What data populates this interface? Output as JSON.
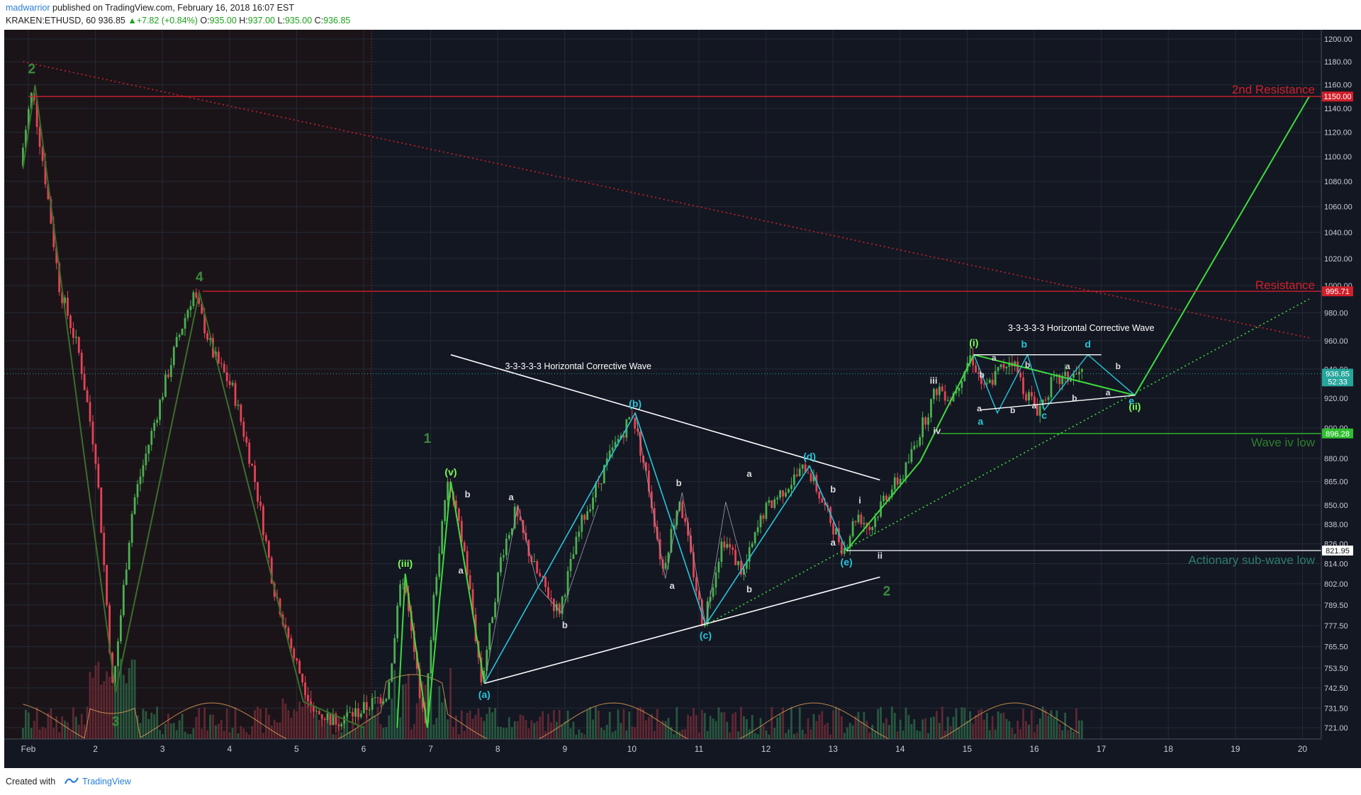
{
  "header": {
    "author": "madwarrior",
    "published": "published on TradingView.com, February 16, 2018 16:07 EST",
    "symbol": "KRAKEN:ETHUSD, 60",
    "last": "936.85",
    "change": "+7.82 (+0.84%)",
    "open_label": "O:",
    "open": "935.00",
    "high_label": "H:",
    "high": "937.00",
    "low_label": "L:",
    "low": "935.00",
    "close_label": "C:",
    "close": "936.85"
  },
  "footer": {
    "created_with": "Created with",
    "brand": "TradingView"
  },
  "colors": {
    "background": "#131722",
    "grid": "#2a2e39",
    "candle_up": "#4caf50",
    "candle_down": "#e54354",
    "wave_cyan": "#26c6da",
    "wave_green": "#3ddc3d",
    "resistance_red": "#d0202a",
    "label_green": "#3a8a3a"
  },
  "chart_data": {
    "type": "candlestick",
    "y_axis": {
      "ticks": [
        "721.00",
        "731.50",
        "742.50",
        "753.50",
        "765.50",
        "777.50",
        "789.50",
        "802.00",
        "814.00",
        "826.00",
        "838.00",
        "850.00",
        "865.00",
        "880.00",
        "900.00",
        "920.00",
        "940.00",
        "960.00",
        "980.00",
        "1000.00",
        "1020.00",
        "1040.00",
        "1060.00",
        "1080.00",
        "1100.00",
        "1120.00",
        "1140.00",
        "1160.00",
        "1180.00",
        "1200.00"
      ],
      "tick_values": [
        721,
        731.5,
        742.5,
        753.5,
        765.5,
        777.5,
        789.5,
        802,
        814,
        826,
        838,
        850,
        865,
        880,
        900,
        920,
        940,
        960,
        980,
        1000,
        1020,
        1040,
        1060,
        1080,
        1100,
        1120,
        1140,
        1160,
        1180,
        1200
      ],
      "scale": "log"
    },
    "x_axis": {
      "ticks": [
        "Feb",
        "2",
        "3",
        "4",
        "5",
        "6",
        "7",
        "8",
        "9",
        "10",
        "11",
        "12",
        "13",
        "14",
        "15",
        "16",
        "17",
        "18",
        "19",
        "20"
      ],
      "tick_days": [
        1,
        2,
        3,
        4,
        5,
        6,
        7,
        8,
        9,
        10,
        11,
        12,
        13,
        14,
        15,
        16,
        17,
        18,
        19,
        20
      ]
    },
    "price_badges": [
      {
        "value": 1150,
        "label": "1150.00",
        "color": "#d0202a"
      },
      {
        "value": 995.71,
        "label": "995.71",
        "color": "#d0202a"
      },
      {
        "value": 936.85,
        "label": "936.85",
        "color": "#26a69a"
      },
      {
        "value": 931.5,
        "label": "52:33",
        "color": "#26a69a"
      },
      {
        "value": 896.28,
        "label": "896.28",
        "color": "#2fbf2f"
      },
      {
        "value": 821.95,
        "label": "821.95",
        "color": "#ffffff"
      }
    ],
    "horizontal_levels": [
      {
        "name": "2nd Resistance",
        "value": 1150,
        "from_day": 1.0,
        "color": "#d0202a"
      },
      {
        "name": "Resistance",
        "value": 995.71,
        "from_day": 3.6,
        "color": "#d0202a"
      },
      {
        "name": "Wave iv low",
        "value": 896.28,
        "from_day": 14.6,
        "color": "#2fbf2f"
      },
      {
        "name": "Actionary sub-wave low",
        "value": 821.95,
        "from_day": 13.2,
        "color": "#ffffff"
      }
    ],
    "level_labels": [
      "2nd Resistance",
      "Resistance",
      "Wave iv low",
      "Actionary sub-wave low"
    ],
    "annotations": [
      "3-3-3-3-3 Horizontal Corrective Wave",
      "3-3-3-3-3 Horizontal Corrective Wave"
    ],
    "price_path": [
      {
        "t": 0.92,
        "p": 1092
      },
      {
        "t": 1.05,
        "p": 1140
      },
      {
        "t": 1.1,
        "p": 1155
      },
      {
        "t": 1.3,
        "p": 1080
      },
      {
        "t": 1.5,
        "p": 1000
      },
      {
        "t": 1.8,
        "p": 950
      },
      {
        "t": 2.05,
        "p": 880
      },
      {
        "t": 2.3,
        "p": 740
      },
      {
        "t": 2.6,
        "p": 850
      },
      {
        "t": 2.9,
        "p": 900
      },
      {
        "t": 3.2,
        "p": 950
      },
      {
        "t": 3.5,
        "p": 995
      },
      {
        "t": 3.8,
        "p": 950
      },
      {
        "t": 4.1,
        "p": 925
      },
      {
        "t": 4.4,
        "p": 870
      },
      {
        "t": 4.7,
        "p": 800
      },
      {
        "t": 5.0,
        "p": 760
      },
      {
        "t": 5.3,
        "p": 730
      },
      {
        "t": 5.6,
        "p": 725
      },
      {
        "t": 6.0,
        "p": 730
      },
      {
        "t": 6.4,
        "p": 740
      },
      {
        "t": 6.62,
        "p": 808
      },
      {
        "t": 6.8,
        "p": 760
      },
      {
        "t": 6.95,
        "p": 721
      },
      {
        "t": 7.1,
        "p": 800
      },
      {
        "t": 7.3,
        "p": 865
      },
      {
        "t": 7.55,
        "p": 820
      },
      {
        "t": 7.8,
        "p": 745
      },
      {
        "t": 8.1,
        "p": 820
      },
      {
        "t": 8.3,
        "p": 845
      },
      {
        "t": 8.6,
        "p": 810
      },
      {
        "t": 8.95,
        "p": 785
      },
      {
        "t": 9.3,
        "p": 840
      },
      {
        "t": 9.7,
        "p": 880
      },
      {
        "t": 10.05,
        "p": 910
      },
      {
        "t": 10.3,
        "p": 860
      },
      {
        "t": 10.5,
        "p": 810
      },
      {
        "t": 10.75,
        "p": 855
      },
      {
        "t": 11.1,
        "p": 778
      },
      {
        "t": 11.4,
        "p": 830
      },
      {
        "t": 11.7,
        "p": 808
      },
      {
        "t": 12.0,
        "p": 845
      },
      {
        "t": 12.3,
        "p": 860
      },
      {
        "t": 12.65,
        "p": 875
      },
      {
        "t": 12.9,
        "p": 850
      },
      {
        "t": 13.2,
        "p": 822
      },
      {
        "t": 13.4,
        "p": 845
      },
      {
        "t": 13.6,
        "p": 835
      },
      {
        "t": 13.8,
        "p": 855
      },
      {
        "t": 14.1,
        "p": 870
      },
      {
        "t": 14.4,
        "p": 905
      },
      {
        "t": 14.6,
        "p": 928
      },
      {
        "t": 14.8,
        "p": 920
      },
      {
        "t": 15.1,
        "p": 950
      },
      {
        "t": 15.3,
        "p": 925
      },
      {
        "t": 15.5,
        "p": 938
      },
      {
        "t": 15.7,
        "p": 948
      },
      {
        "t": 15.9,
        "p": 925
      },
      {
        "t": 16.1,
        "p": 912
      },
      {
        "t": 16.3,
        "p": 930
      },
      {
        "t": 16.6,
        "p": 935
      },
      {
        "t": 16.75,
        "p": 936.85
      }
    ]
  }
}
